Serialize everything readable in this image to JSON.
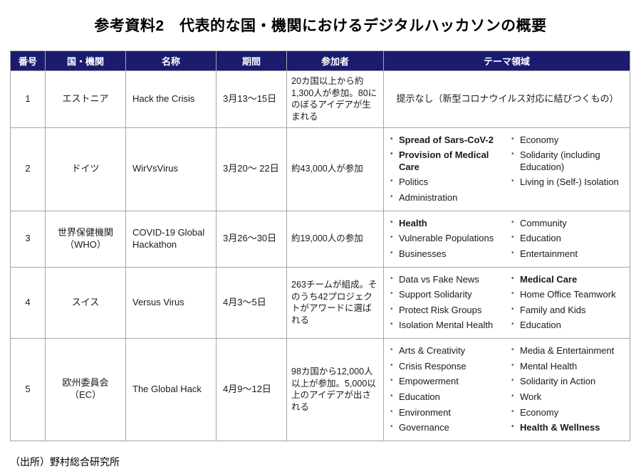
{
  "title": "参考資料2　代表的な国・機関におけるデジタルハッカソンの概要",
  "source": "（出所）野村総合研究所",
  "colors": {
    "header_bg": "#1b1b70",
    "header_text": "#ffffff",
    "border": "#a6a6a6",
    "text": "#1a1a1a"
  },
  "table": {
    "headers": [
      "番号",
      "国・機関",
      "名称",
      "期間",
      "参加者",
      "テーマ領域"
    ],
    "rows": [
      {
        "no": "1",
        "org": "エストニア",
        "name": "Hack the Crisis",
        "period": "3月13〜15日",
        "participants": "20カ国以上から約1,300人が参加。80にのぼるアイデアが生まれる",
        "theme_text": "提示なし（新型コロナウイルス対応に結びつくもの）",
        "themes_left": [],
        "themes_right": []
      },
      {
        "no": "2",
        "org": "ドイツ",
        "name": "WirVsVirus",
        "period": "3月20〜 22日",
        "participants": "約43,000人が参加",
        "theme_text": "",
        "themes_left": [
          {
            "label": "Spread of Sars-CoV-2",
            "bold": true
          },
          {
            "label": "Provision of Medical Care",
            "bold": true
          },
          {
            "label": "Politics",
            "bold": false
          },
          {
            "label": "Administration",
            "bold": false
          }
        ],
        "themes_right": [
          {
            "label": "Economy",
            "bold": false
          },
          {
            "label": "Solidarity (including Education)",
            "bold": false
          },
          {
            "label": "Living in (Self-) Isolation",
            "bold": false
          }
        ]
      },
      {
        "no": "3",
        "org": "世界保健機関\n（WHO）",
        "name": "COVID-19 Global Hackathon",
        "period": "3月26〜30日",
        "participants": "約19,000人の参加",
        "theme_text": "",
        "themes_left": [
          {
            "label": "Health",
            "bold": true
          },
          {
            "label": "Vulnerable Populations",
            "bold": false
          },
          {
            "label": "Businesses",
            "bold": false
          }
        ],
        "themes_right": [
          {
            "label": "Community",
            "bold": false
          },
          {
            "label": "Education",
            "bold": false
          },
          {
            "label": "Entertainment",
            "bold": false
          }
        ]
      },
      {
        "no": "4",
        "org": "スイス",
        "name": "Versus Virus",
        "period": "4月3〜5日",
        "participants": "263チームが組成。そのうち42プロジェクトがアワードに選ばれる",
        "theme_text": "",
        "themes_left": [
          {
            "label": "Data vs Fake News",
            "bold": false
          },
          {
            "label": "Support Solidarity",
            "bold": false
          },
          {
            "label": "Protect Risk Groups",
            "bold": false
          },
          {
            "label": "Isolation Mental Health",
            "bold": false
          }
        ],
        "themes_right": [
          {
            "label": "Medical Care",
            "bold": true
          },
          {
            "label": "Home Office Teamwork",
            "bold": false
          },
          {
            "label": "Family and Kids",
            "bold": false
          },
          {
            "label": "Education",
            "bold": false
          }
        ]
      },
      {
        "no": "5",
        "org": "欧州委員会\n（EC）",
        "name": "The Global Hack",
        "period": "4月9〜12日",
        "participants": "98カ国から12,000人以上が参加。5,000以上のアイデアが出される",
        "theme_text": "",
        "themes_left": [
          {
            "label": "Arts & Creativity",
            "bold": false
          },
          {
            "label": "Crisis Response",
            "bold": false
          },
          {
            "label": "Empowerment",
            "bold": false
          },
          {
            "label": "Education",
            "bold": false
          },
          {
            "label": "Environment",
            "bold": false
          },
          {
            "label": "Governance",
            "bold": false
          }
        ],
        "themes_right": [
          {
            "label": "Media & Entertainment",
            "bold": false
          },
          {
            "label": "Mental Health",
            "bold": false
          },
          {
            "label": "Solidarity in Action",
            "bold": false
          },
          {
            "label": "Work",
            "bold": false
          },
          {
            "label": "Economy",
            "bold": false
          },
          {
            "label": "Health & Wellness",
            "bold": true
          }
        ]
      }
    ]
  }
}
